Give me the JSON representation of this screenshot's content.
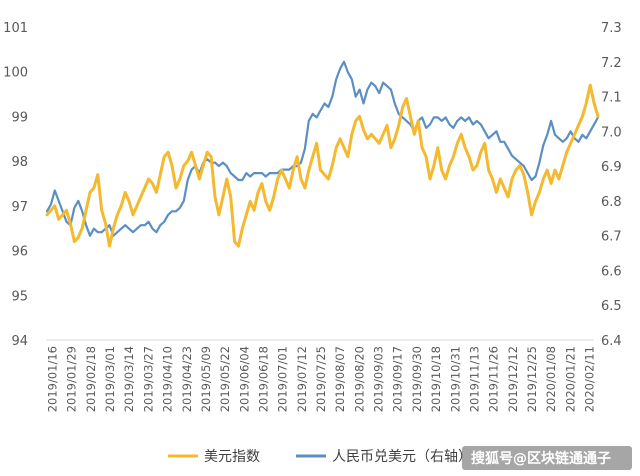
{
  "chart_data": {
    "type": "line",
    "title": "",
    "y_left": {
      "ylim": [
        94,
        101
      ],
      "ticks": [
        94,
        95,
        96,
        97,
        98,
        99,
        100,
        101
      ]
    },
    "y_right": {
      "ylim": [
        6.4,
        7.3
      ],
      "ticks": [
        "6.4",
        "6.5",
        "6.6",
        "6.7",
        "6.8",
        "6.9",
        "7.0",
        "7.1",
        "7.2",
        "7.3"
      ]
    },
    "x_tick_labels": [
      "2019/01/16",
      "2019/01/29",
      "2019/02/18",
      "2019/03/01",
      "2019/03/14",
      "2019/03/27",
      "2019/04/10",
      "2019/04/23",
      "2019/05/09",
      "2019/05/22",
      "2019/06/04",
      "2019/06/18",
      "2019/07/01",
      "2019/07/12",
      "2019/07/25",
      "2019/08/07",
      "2019/08/20",
      "2019/09/03",
      "2019/09/17",
      "2019/09/30",
      "2019/10/18",
      "2019/10/31",
      "2019/11/13",
      "2019/11/26",
      "2019/12/12",
      "2019/12/25",
      "2020/01/08",
      "2020/01/21",
      "2020/02/11"
    ],
    "grid": false,
    "legend_position": "bottom",
    "series": [
      {
        "name": "美元指数",
        "axis": "left",
        "color": "#F4B92E",
        "values": [
          96.8,
          96.9,
          97.0,
          96.7,
          96.8,
          96.9,
          96.6,
          96.2,
          96.3,
          96.5,
          96.9,
          97.3,
          97.4,
          97.7,
          96.9,
          96.6,
          96.1,
          96.5,
          96.8,
          97.0,
          97.3,
          97.1,
          96.8,
          97.0,
          97.2,
          97.4,
          97.6,
          97.5,
          97.3,
          97.7,
          98.1,
          98.2,
          97.9,
          97.4,
          97.6,
          97.9,
          98.0,
          98.2,
          97.9,
          97.6,
          97.9,
          98.2,
          98.1,
          97.2,
          96.8,
          97.2,
          97.6,
          97.2,
          96.2,
          96.1,
          96.5,
          96.8,
          97.1,
          96.9,
          97.3,
          97.5,
          97.1,
          96.9,
          97.2,
          97.6,
          97.8,
          97.6,
          97.4,
          97.8,
          98.1,
          97.6,
          97.4,
          97.8,
          98.1,
          98.4,
          97.8,
          97.7,
          97.6,
          97.9,
          98.3,
          98.5,
          98.3,
          98.1,
          98.6,
          98.9,
          99.0,
          98.7,
          98.5,
          98.6,
          98.5,
          98.4,
          98.6,
          98.8,
          98.3,
          98.5,
          98.8,
          99.2,
          99.4,
          99.0,
          98.6,
          98.9,
          98.3,
          98.1,
          97.6,
          97.9,
          98.3,
          97.8,
          97.6,
          97.9,
          98.1,
          98.4,
          98.6,
          98.3,
          98.1,
          97.8,
          97.9,
          98.2,
          98.4,
          97.8,
          97.6,
          97.3,
          97.6,
          97.4,
          97.2,
          97.6,
          97.8,
          97.9,
          97.7,
          97.3,
          96.8,
          97.1,
          97.3,
          97.6,
          97.8,
          97.5,
          97.8,
          97.6,
          97.9,
          98.2,
          98.4,
          98.6,
          98.8,
          99.0,
          99.3,
          99.7,
          99.3,
          99.0
        ]
      },
      {
        "name": "人民币兑美元（右轴）",
        "axis": "right",
        "color": "#5B8FC3",
        "values": [
          6.77,
          6.79,
          6.83,
          6.8,
          6.77,
          6.74,
          6.73,
          6.78,
          6.8,
          6.77,
          6.73,
          6.7,
          6.72,
          6.71,
          6.71,
          6.72,
          6.73,
          6.7,
          6.71,
          6.72,
          6.73,
          6.72,
          6.71,
          6.72,
          6.73,
          6.73,
          6.74,
          6.72,
          6.71,
          6.73,
          6.74,
          6.76,
          6.77,
          6.77,
          6.78,
          6.8,
          6.86,
          6.89,
          6.9,
          6.88,
          6.91,
          6.92,
          6.91,
          6.91,
          6.9,
          6.91,
          6.9,
          6.88,
          6.87,
          6.86,
          6.86,
          6.88,
          6.87,
          6.88,
          6.88,
          6.88,
          6.87,
          6.88,
          6.88,
          6.88,
          6.89,
          6.89,
          6.89,
          6.9,
          6.9,
          6.91,
          6.95,
          7.03,
          7.05,
          7.04,
          7.06,
          7.08,
          7.07,
          7.1,
          7.15,
          7.18,
          7.2,
          7.17,
          7.15,
          7.1,
          7.12,
          7.08,
          7.12,
          7.14,
          7.13,
          7.11,
          7.14,
          7.13,
          7.12,
          7.08,
          7.05,
          7.04,
          7.03,
          7.02,
          7.0,
          7.03,
          7.04,
          7.01,
          7.02,
          7.04,
          7.04,
          7.03,
          7.04,
          7.02,
          7.01,
          7.03,
          7.04,
          7.03,
          7.04,
          7.02,
          7.03,
          7.02,
          7.0,
          6.98,
          6.99,
          7.0,
          6.97,
          6.97,
          6.95,
          6.93,
          6.92,
          6.91,
          6.9,
          6.88,
          6.86,
          6.87,
          6.91,
          6.96,
          6.99,
          7.03,
          6.99,
          6.98,
          6.97,
          6.98,
          7.0,
          6.98,
          6.97,
          6.99,
          6.98,
          7.0,
          7.02,
          7.04
        ]
      }
    ]
  },
  "legend": [
    {
      "label": "美元指数",
      "color": "#F4B92E"
    },
    {
      "label": "人民币兑美元（右轴）",
      "color": "#5B8FC3"
    }
  ],
  "watermark": "搜狐号@区块链通通子"
}
